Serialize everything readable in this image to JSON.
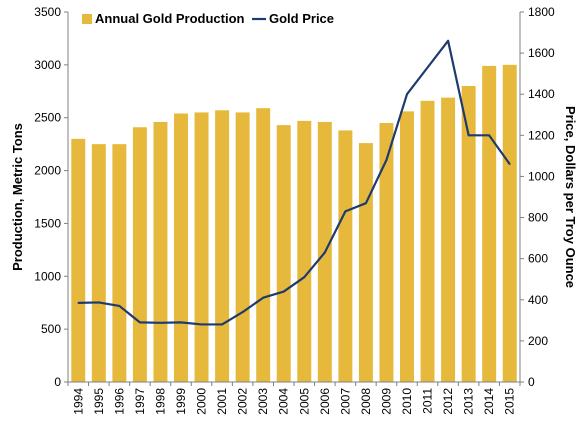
{
  "chart_data": {
    "type": "bar",
    "categories": [
      "1994",
      "1995",
      "1996",
      "1997",
      "1998",
      "1999",
      "2000",
      "2001",
      "2002",
      "2003",
      "2004",
      "2005",
      "2006",
      "2007",
      "2008",
      "2009",
      "2010",
      "2011",
      "2012",
      "2013",
      "2014",
      "2015"
    ],
    "series": [
      {
        "name": "Annual Gold Production",
        "type": "bar",
        "axis": "left",
        "color": "#e6b93d",
        "values": [
          2300,
          2250,
          2250,
          2410,
          2460,
          2540,
          2550,
          2570,
          2550,
          2590,
          2430,
          2470,
          2460,
          2380,
          2260,
          2450,
          2560,
          2660,
          2690,
          2800,
          2990,
          3000
        ]
      },
      {
        "name": "Gold Price",
        "type": "line",
        "axis": "right",
        "color": "#1f3a6e",
        "values": [
          385,
          387,
          370,
          290,
          288,
          290,
          280,
          280,
          340,
          410,
          440,
          510,
          630,
          830,
          870,
          1080,
          1400,
          1530,
          1660,
          1200,
          1200,
          1060
        ]
      }
    ],
    "ylabel": "Production, Metric Tons",
    "y2label": "Price, Dollars per Troy Ounce",
    "ylim": [
      0,
      3500
    ],
    "y2lim": [
      0,
      1800
    ],
    "yticks": [
      0,
      500,
      1000,
      1500,
      2000,
      2500,
      3000,
      3500
    ],
    "y2ticks": [
      0,
      200,
      400,
      600,
      800,
      1000,
      1200,
      1400,
      1600,
      1800
    ],
    "legend": "top-left",
    "grid": false
  }
}
